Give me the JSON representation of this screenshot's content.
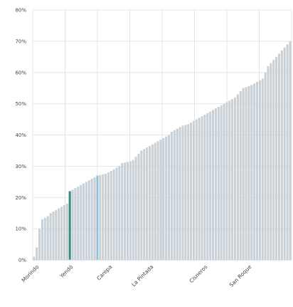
{
  "chart_data": {
    "type": "bar",
    "title": "",
    "xlabel": "",
    "ylabel": "",
    "ylim": [
      0,
      80
    ],
    "y_ticks": [
      "0%",
      "10%",
      "20%",
      "30%",
      "40%",
      "50%",
      "60%",
      "70%",
      "80%"
    ],
    "x_labels": [
      "Morindo",
      "Yendó",
      "Carepa",
      "La Pintada",
      "Cisneros",
      "San Roque"
    ],
    "grid": true,
    "legend": "none",
    "colors": {
      "default": "#c9d1d6",
      "highlight_teal": "#2f8f80",
      "highlight_blue": "#8fc2dc"
    },
    "highlighted": [
      {
        "index": 13,
        "color": "teal"
      },
      {
        "index": 23,
        "color": "blue"
      }
    ],
    "values": [
      1,
      4,
      10,
      13,
      13.5,
      14,
      15,
      15.5,
      16,
      16.5,
      17,
      17.5,
      18,
      22,
      22.5,
      23,
      23.5,
      24,
      24.5,
      25,
      25.5,
      26,
      26.5,
      27,
      27.2,
      27.4,
      27.6,
      28,
      28.5,
      29,
      29.5,
      30,
      31,
      31.2,
      31.4,
      31.6,
      32,
      33,
      34,
      35,
      35.5,
      36,
      36.5,
      37,
      37.5,
      38,
      38.5,
      39,
      39.5,
      40,
      41,
      41.5,
      42,
      42.5,
      43,
      43.2,
      43.5,
      44,
      44.5,
      45,
      45.5,
      46,
      46.5,
      47,
      47.5,
      48,
      48.5,
      49,
      49.5,
      50,
      50.5,
      51,
      51.5,
      52,
      53,
      54,
      55,
      55.3,
      55.6,
      56,
      56.5,
      57,
      57.5,
      58,
      60,
      62,
      63,
      64,
      65,
      66,
      67,
      68,
      69,
      70
    ]
  }
}
